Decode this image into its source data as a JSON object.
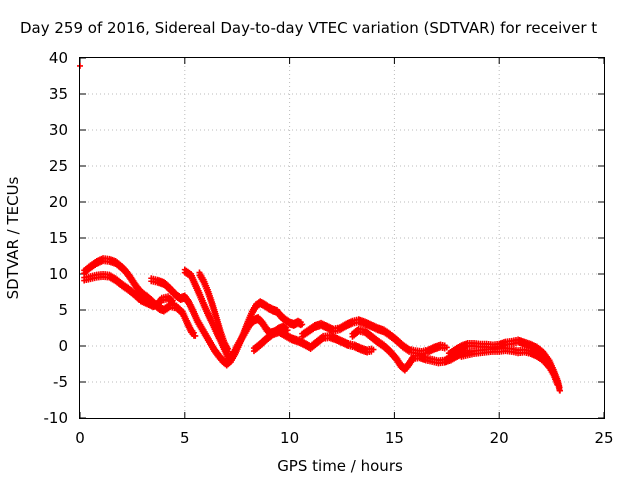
{
  "chart_data": {
    "type": "scatter",
    "title": "Day 259 of 2016, Sidereal Day-to-day VTEC variation (SDTVAR) for receiver t",
    "xlabel": "GPS time / hours",
    "ylabel": "SDTVAR / TECUs",
    "xlim": [
      0,
      25
    ],
    "ylim": [
      -10,
      40
    ],
    "xticks": [
      "0",
      "5",
      "10",
      "15",
      "20",
      "25"
    ],
    "yticks": [
      "-10",
      "-5",
      "0",
      "5",
      "10",
      "15",
      "20",
      "25",
      "30",
      "35",
      "40"
    ],
    "grid": true,
    "marker": "+",
    "color": "#ff0000",
    "series": [
      {
        "points": [
          [
            0.0,
            38.9
          ]
        ]
      },
      {
        "points": [
          [
            0.2,
            10.3
          ],
          [
            0.5,
            11.0
          ],
          [
            0.8,
            11.6
          ],
          [
            1.1,
            12.0
          ],
          [
            1.4,
            11.9
          ],
          [
            1.7,
            11.6
          ],
          [
            2.0,
            10.9
          ],
          [
            2.2,
            10.3
          ],
          [
            2.4,
            9.5
          ],
          [
            2.6,
            8.6
          ],
          [
            2.8,
            7.8
          ],
          [
            3.0,
            7.2
          ],
          [
            3.2,
            6.8
          ],
          [
            3.4,
            6.3
          ],
          [
            3.6,
            5.7
          ],
          [
            3.8,
            5.2
          ],
          [
            4.0,
            5.0
          ],
          [
            4.3,
            5.6
          ],
          [
            4.6,
            5.4
          ],
          [
            4.9,
            4.6
          ],
          [
            5.1,
            3.3
          ],
          [
            5.3,
            2.1
          ],
          [
            5.5,
            1.4
          ]
        ]
      },
      {
        "points": [
          [
            0.2,
            9.3
          ],
          [
            0.5,
            9.5
          ],
          [
            0.8,
            9.7
          ],
          [
            1.1,
            9.8
          ],
          [
            1.4,
            9.7
          ],
          [
            1.7,
            9.2
          ],
          [
            2.0,
            8.5
          ],
          [
            2.3,
            7.9
          ],
          [
            2.6,
            7.2
          ],
          [
            2.9,
            6.4
          ],
          [
            3.2,
            6.0
          ],
          [
            3.5,
            5.6
          ],
          [
            3.7,
            5.8
          ],
          [
            3.9,
            6.5
          ],
          [
            4.2,
            6.7
          ],
          [
            4.5,
            5.9
          ]
        ]
      },
      {
        "points": [
          [
            3.4,
            9.2
          ],
          [
            3.7,
            9.0
          ],
          [
            4.0,
            8.7
          ],
          [
            4.2,
            8.2
          ],
          [
            4.4,
            7.6
          ],
          [
            4.6,
            7.0
          ],
          [
            4.8,
            6.6
          ],
          [
            5.0,
            6.8
          ],
          [
            5.2,
            6.0
          ],
          [
            5.4,
            4.8
          ],
          [
            5.6,
            3.5
          ],
          [
            5.8,
            2.5
          ],
          [
            6.0,
            1.5
          ],
          [
            6.2,
            0.5
          ],
          [
            6.4,
            -0.5
          ],
          [
            6.6,
            -1.3
          ],
          [
            6.8,
            -2.0
          ],
          [
            7.0,
            -2.5
          ],
          [
            7.2,
            -2.0
          ],
          [
            7.4,
            -1.0
          ],
          [
            7.6,
            0.3
          ],
          [
            7.8,
            1.7
          ],
          [
            8.0,
            3.2
          ],
          [
            8.2,
            4.6
          ],
          [
            8.4,
            5.6
          ],
          [
            8.6,
            6.0
          ],
          [
            8.8,
            5.7
          ],
          [
            9.0,
            5.3
          ],
          [
            9.2,
            5.0
          ],
          [
            9.4,
            4.8
          ],
          [
            9.6,
            4.1
          ],
          [
            9.8,
            3.6
          ],
          [
            10.0,
            3.2
          ],
          [
            10.2,
            3.0
          ],
          [
            10.4,
            3.3
          ],
          [
            10.6,
            3.0
          ]
        ]
      },
      {
        "points": [
          [
            5.0,
            10.4
          ],
          [
            5.3,
            9.8
          ],
          [
            5.5,
            8.5
          ],
          [
            5.7,
            7.2
          ],
          [
            5.9,
            5.8
          ],
          [
            6.1,
            4.5
          ],
          [
            6.3,
            3.3
          ],
          [
            6.5,
            2.0
          ],
          [
            6.7,
            0.8
          ],
          [
            6.9,
            -0.5
          ],
          [
            7.1,
            -1.8
          ],
          [
            7.3,
            -1.2
          ],
          [
            7.5,
            0.0
          ],
          [
            7.7,
            1.0
          ],
          [
            7.9,
            2.0
          ],
          [
            8.1,
            3.0
          ],
          [
            8.3,
            3.6
          ],
          [
            8.5,
            3.8
          ],
          [
            8.7,
            3.2
          ],
          [
            8.9,
            2.3
          ],
          [
            9.1,
            1.8
          ],
          [
            9.3,
            2.0
          ],
          [
            9.5,
            2.4
          ],
          [
            9.7,
            2.6
          ],
          [
            9.9,
            2.2
          ]
        ]
      },
      {
        "points": [
          [
            5.7,
            10.0
          ],
          [
            5.9,
            9.0
          ],
          [
            6.1,
            7.6
          ],
          [
            6.3,
            5.9
          ],
          [
            6.5,
            4.0
          ],
          [
            6.7,
            2.0
          ],
          [
            6.9,
            0.3
          ],
          [
            7.1,
            -0.8
          ]
        ]
      },
      {
        "points": [
          [
            8.3,
            -0.5
          ],
          [
            8.6,
            0.2
          ],
          [
            8.9,
            1.0
          ],
          [
            9.2,
            1.7
          ],
          [
            9.5,
            2.0
          ],
          [
            9.8,
            1.5
          ],
          [
            10.1,
            1.0
          ],
          [
            10.4,
            0.7
          ],
          [
            10.7,
            0.3
          ],
          [
            11.0,
            -0.2
          ],
          [
            11.3,
            0.5
          ],
          [
            11.6,
            1.2
          ],
          [
            11.9,
            1.3
          ],
          [
            12.2,
            1.0
          ],
          [
            12.5,
            0.6
          ],
          [
            12.8,
            0.2
          ],
          [
            13.1,
            0.0
          ],
          [
            13.4,
            -0.4
          ],
          [
            13.7,
            -0.7
          ],
          [
            14.0,
            -0.5
          ]
        ]
      },
      {
        "points": [
          [
            10.6,
            1.5
          ],
          [
            10.9,
            2.1
          ],
          [
            11.2,
            2.7
          ],
          [
            11.5,
            3.0
          ],
          [
            11.8,
            2.6
          ],
          [
            12.1,
            2.2
          ],
          [
            12.4,
            2.4
          ],
          [
            12.7,
            2.9
          ],
          [
            13.0,
            3.3
          ],
          [
            13.3,
            3.5
          ],
          [
            13.6,
            3.2
          ],
          [
            13.9,
            2.8
          ],
          [
            14.2,
            2.4
          ],
          [
            14.5,
            2.1
          ],
          [
            14.8,
            1.5
          ],
          [
            15.1,
            0.8
          ],
          [
            15.4,
            0.0
          ],
          [
            15.7,
            -0.6
          ],
          [
            16.0,
            -0.8
          ],
          [
            16.3,
            -0.9
          ],
          [
            16.6,
            -0.7
          ],
          [
            16.9,
            -0.3
          ],
          [
            17.2,
            0.0
          ],
          [
            17.5,
            -0.2
          ]
        ]
      },
      {
        "points": [
          [
            13.0,
            1.5
          ],
          [
            13.3,
            2.2
          ],
          [
            13.6,
            2.0
          ],
          [
            13.9,
            1.3
          ],
          [
            14.2,
            0.6
          ],
          [
            14.5,
            0.0
          ],
          [
            14.8,
            -0.8
          ],
          [
            15.1,
            -1.8
          ],
          [
            15.3,
            -2.7
          ],
          [
            15.5,
            -3.2
          ],
          [
            15.7,
            -2.5
          ],
          [
            15.9,
            -1.6
          ],
          [
            16.2,
            -1.5
          ],
          [
            16.5,
            -1.8
          ],
          [
            16.8,
            -2.0
          ],
          [
            17.1,
            -2.2
          ],
          [
            17.4,
            -2.1
          ],
          [
            17.7,
            -1.8
          ],
          [
            18.0,
            -1.3
          ],
          [
            18.3,
            -0.9
          ],
          [
            18.6,
            -0.8
          ]
        ]
      },
      {
        "points": [
          [
            17.6,
            -1.2
          ],
          [
            17.9,
            -0.6
          ],
          [
            18.2,
            -0.1
          ],
          [
            18.5,
            0.2
          ],
          [
            18.8,
            0.2
          ],
          [
            19.1,
            0.1
          ],
          [
            19.4,
            0.1
          ],
          [
            19.7,
            0.0
          ],
          [
            20.0,
            0.1
          ],
          [
            20.3,
            0.4
          ],
          [
            20.6,
            0.5
          ],
          [
            20.9,
            0.7
          ],
          [
            21.2,
            0.4
          ],
          [
            21.5,
            0.1
          ],
          [
            21.8,
            -0.3
          ],
          [
            22.1,
            -1.0
          ],
          [
            22.4,
            -2.2
          ],
          [
            22.6,
            -3.5
          ],
          [
            22.8,
            -5.0
          ],
          [
            22.9,
            -6.2
          ]
        ]
      },
      {
        "points": [
          [
            18.2,
            -1.3
          ],
          [
            18.5,
            -1.1
          ],
          [
            18.8,
            -0.9
          ],
          [
            19.1,
            -0.8
          ],
          [
            19.4,
            -0.7
          ],
          [
            19.7,
            -0.6
          ],
          [
            20.0,
            -0.6
          ],
          [
            20.3,
            -0.5
          ],
          [
            20.6,
            -0.6
          ],
          [
            20.9,
            -0.8
          ],
          [
            21.2,
            -0.7
          ],
          [
            21.5,
            -0.9
          ],
          [
            21.8,
            -1.3
          ],
          [
            22.1,
            -1.9
          ],
          [
            22.4,
            -2.9
          ],
          [
            22.6,
            -3.9
          ],
          [
            22.8,
            -5.4
          ]
        ]
      }
    ]
  }
}
